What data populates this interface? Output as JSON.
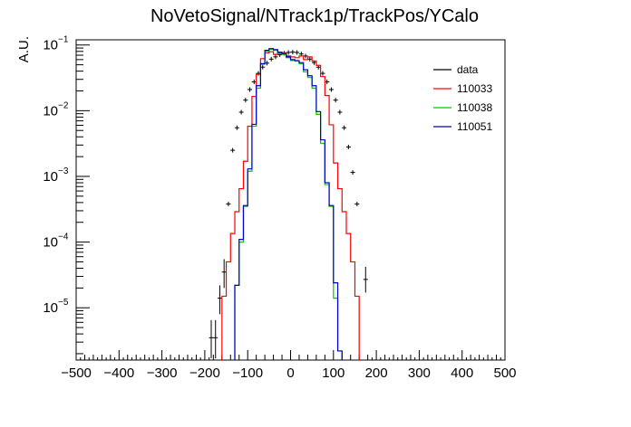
{
  "chart_data": {
    "type": "histogram",
    "title": "NoVetoSignal/NTrack1p/TrackPos/YCalo",
    "xlabel": "",
    "ylabel": "A.U.",
    "xlim": [
      -500,
      500
    ],
    "ylim": [
      1.6e-06,
      0.12
    ],
    "yscale": "log",
    "grid": false,
    "legend_position": "top-right",
    "x_ticks": [
      "−500",
      "−400",
      "−300",
      "−200",
      "−100",
      "0",
      "100",
      "200",
      "300",
      "400",
      "500"
    ],
    "y_ticks": [
      {
        "value": 0.1,
        "mant": "10",
        "exp": "−1"
      },
      {
        "value": 0.01,
        "mant": "10",
        "exp": "−2"
      },
      {
        "value": 0.001,
        "mant": "10",
        "exp": "−3"
      },
      {
        "value": 0.0001,
        "mant": "10",
        "exp": "−4"
      },
      {
        "value": 1e-05,
        "mant": "10",
        "exp": "−5"
      }
    ],
    "bin_width": 10,
    "series": [
      {
        "name": "data",
        "color": "#000000",
        "style": "points",
        "x": [
          -185,
          -175,
          -165,
          -155,
          -145,
          -135,
          -125,
          -115,
          -105,
          -95,
          -85,
          -75,
          -65,
          -55,
          -45,
          -35,
          -25,
          -15,
          -5,
          5,
          15,
          25,
          35,
          45,
          55,
          65,
          75,
          85,
          95,
          105,
          115,
          125,
          135,
          145,
          155,
          165,
          175
        ],
        "y": [
          3.5e-06,
          3.5e-06,
          1.4e-05,
          3.5e-05,
          0.00038,
          0.0025,
          0.0055,
          0.0095,
          0.0145,
          0.021,
          0.0275,
          0.037,
          0.046,
          0.053,
          0.061,
          0.066,
          0.071,
          0.075,
          0.077,
          0.078,
          0.077,
          0.073,
          0.068,
          0.061,
          0.054,
          0.046,
          0.037,
          0.0275,
          0.021,
          0.0145,
          0.0095,
          0.0055,
          0.0028,
          0.00115,
          0.00038,
          0.0,
          2.7e-05
        ],
        "err_lo": [
          1.8e-06,
          1.8e-06,
          6e-06,
          1.5e-05,
          3e-05,
          0,
          0,
          0,
          0,
          0,
          0,
          0,
          0,
          0,
          0,
          0,
          0,
          0,
          0,
          0,
          0,
          0,
          0,
          0,
          0,
          0,
          0,
          0,
          0,
          0,
          0,
          0,
          0,
          0,
          3e-05,
          0,
          1e-05
        ],
        "err_hi": [
          3e-06,
          3e-06,
          8e-06,
          2e-05,
          3e-05,
          0,
          0,
          0,
          0,
          0,
          0,
          0,
          0,
          0,
          0,
          0,
          0,
          0,
          0,
          0,
          0,
          0,
          0,
          0,
          0,
          0,
          0,
          0,
          0,
          0,
          0,
          0,
          0,
          0,
          3e-05,
          0,
          1.5e-05
        ]
      },
      {
        "name": "110033",
        "color": "#ff0000",
        "style": "step",
        "x_start": -160,
        "y": [
          1.5e-05,
          5e-05,
          0.000135,
          0.00029,
          0.00065,
          0.0017,
          0.0058,
          0.0165,
          0.036,
          0.062,
          0.076,
          0.079,
          0.072,
          0.078,
          0.076,
          0.068,
          0.066,
          0.064,
          0.068,
          0.06,
          0.066,
          0.057,
          0.049,
          0.033,
          0.017,
          0.0061,
          0.0016,
          0.00065,
          0.00029,
          0.000135,
          5e-05,
          1.5e-05
        ]
      },
      {
        "name": "110038",
        "color": "#00cc00",
        "style": "step",
        "x_start": -130,
        "y": [
          2.2e-05,
          0.0001,
          0.00035,
          0.0012,
          0.0058,
          0.022,
          0.051,
          0.081,
          0.086,
          0.083,
          0.074,
          0.072,
          0.064,
          0.058,
          0.057,
          0.052,
          0.039,
          0.032,
          0.022,
          0.0088,
          0.0032,
          0.00075,
          0.00035,
          1.4e-05,
          2.2e-06
        ]
      },
      {
        "name": "110051",
        "color": "#0000cc",
        "style": "step",
        "x_start": -130,
        "y": [
          2.2e-05,
          0.00011,
          0.00036,
          0.0013,
          0.0062,
          0.024,
          0.052,
          0.083,
          0.088,
          0.085,
          0.077,
          0.074,
          0.066,
          0.06,
          0.058,
          0.054,
          0.042,
          0.034,
          0.024,
          0.0097,
          0.0036,
          0.0008,
          0.00036,
          2.4e-05,
          2.2e-06
        ]
      }
    ]
  }
}
